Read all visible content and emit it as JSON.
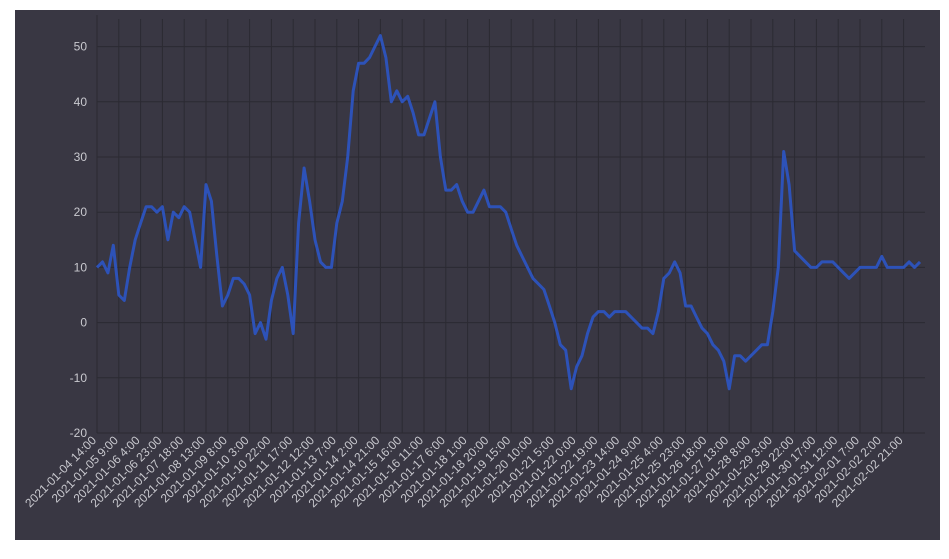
{
  "chart_data": {
    "type": "line",
    "color": "#2d52b8",
    "grid": true,
    "ylim": [
      -20,
      55
    ],
    "yticks": [
      -20,
      -10,
      0,
      10,
      20,
      30,
      40,
      50
    ],
    "categories": [
      "2021-01-04 14:00",
      null,
      null,
      null,
      "2021-01-05 9:00",
      null,
      null,
      null,
      "2021-01-06 4:00",
      null,
      null,
      null,
      "2021-01-06 23:00",
      null,
      null,
      null,
      "2021-01-07 18:00",
      null,
      null,
      null,
      "2021-01-08 13:00",
      null,
      null,
      null,
      "2021-01-09 8:00",
      null,
      null,
      null,
      "2021-01-10 3:00",
      null,
      null,
      null,
      "2021-01-10 22:00",
      null,
      null,
      null,
      "2021-01-11 17:00",
      null,
      null,
      null,
      "2021-01-12 12:00",
      null,
      null,
      null,
      "2021-01-13 7:00",
      null,
      null,
      null,
      "2021-01-14 2:00",
      null,
      null,
      null,
      "2021-01-14 21:00",
      null,
      null,
      null,
      "2021-01-15 16:00",
      null,
      null,
      null,
      "2021-01-16 11:00",
      null,
      null,
      null,
      "2021-01-17 6:00",
      null,
      null,
      null,
      "2021-01-18 1:00",
      null,
      null,
      null,
      "2021-01-18 20:00",
      null,
      null,
      null,
      "2021-01-19 15:00",
      null,
      null,
      null,
      "2021-01-20 10:00",
      null,
      null,
      null,
      "2021-01-21 5:00",
      null,
      null,
      null,
      "2021-01-22 0:00",
      null,
      null,
      null,
      "2021-01-22 19:00",
      null,
      null,
      null,
      "2021-01-23 14:00",
      null,
      null,
      null,
      "2021-01-24 9:00",
      null,
      null,
      null,
      "2021-01-25 4:00",
      null,
      null,
      null,
      "2021-01-25 23:00",
      null,
      null,
      null,
      "2021-01-26 18:00",
      null,
      null,
      null,
      "2021-01-27 13:00",
      null,
      null,
      null,
      "2021-01-28 8:00",
      null,
      null,
      null,
      "2021-01-29 3:00",
      null,
      null,
      null,
      "2021-01-29 22:00",
      null,
      null,
      null,
      "2021-01-30 17:00",
      null,
      null,
      null,
      "2021-01-31 12:00",
      null,
      null,
      null,
      "2021-02-01 7:00",
      null,
      null,
      null,
      "2021-02-02 2:00",
      null,
      null,
      null,
      "2021-02-02 21:00",
      null,
      null,
      null
    ],
    "values": [
      10,
      11,
      9,
      14,
      5,
      4,
      10,
      15,
      18,
      21,
      21,
      20,
      21,
      15,
      20,
      19,
      21,
      20,
      15,
      10,
      25,
      22,
      12,
      3,
      5,
      8,
      8,
      7,
      5,
      -2,
      0,
      -3,
      4,
      8,
      10,
      5,
      -2,
      18,
      28,
      22,
      15,
      11,
      10,
      10,
      18,
      22,
      30,
      42,
      47,
      47,
      48,
      50,
      52,
      48,
      40,
      42,
      40,
      41,
      38,
      34,
      34,
      37,
      40,
      30,
      24,
      24,
      25,
      22,
      20,
      20,
      22,
      24,
      21,
      21,
      21,
      20,
      17,
      14,
      12,
      10,
      8,
      7,
      6,
      3,
      0,
      -4,
      -5,
      -12,
      -8,
      -6,
      -2,
      1,
      2,
      2,
      1,
      2,
      2,
      2,
      1,
      0,
      -1,
      -1,
      -2,
      2,
      8,
      9,
      11,
      9,
      3,
      3,
      1,
      -1,
      -2,
      -4,
      -5,
      -7,
      -12,
      -6,
      -6,
      -7,
      -6,
      -5,
      -4,
      -4,
      2,
      10,
      31,
      25,
      13,
      12,
      11,
      10,
      10,
      11,
      11,
      11,
      10,
      9,
      8,
      9,
      10,
      10,
      10,
      10,
      12,
      10,
      10,
      10,
      10,
      11,
      10,
      11
    ]
  }
}
